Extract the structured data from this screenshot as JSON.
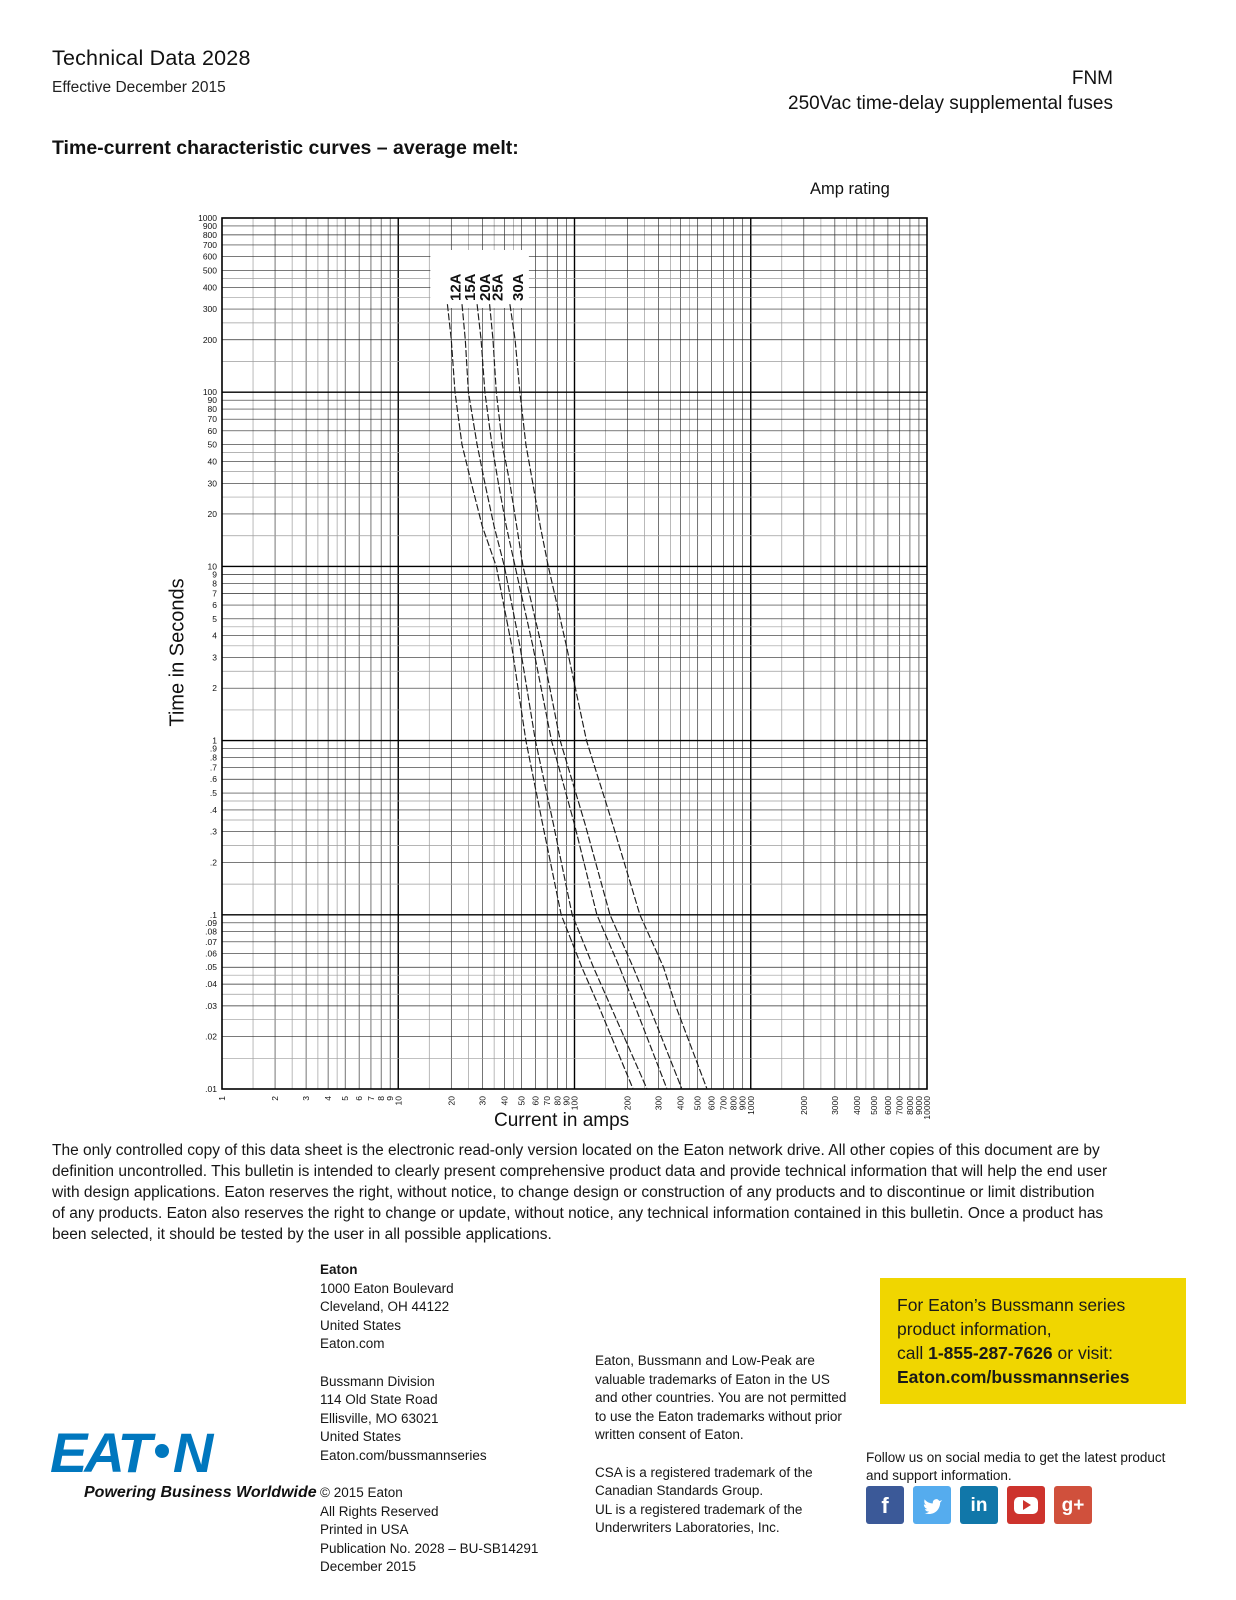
{
  "header": {
    "title": "Technical Data 2028",
    "effective_date": "Effective December 2015",
    "product_series": "FNM",
    "product_description": "250Vac time-delay supplemental fuses"
  },
  "section_title": "Time-current characteristic curves – average melt:",
  "chart_data": {
    "type": "line",
    "title": "Time-current characteristic curves – average melt",
    "legend_title": "Amp rating",
    "xlabel": "Current in amps",
    "ylabel": "Time in Seconds",
    "x_scale": "log",
    "y_scale": "log",
    "xlim": [
      1,
      10000
    ],
    "ylim": [
      0.01,
      1000
    ],
    "grid": true,
    "x_tick_labels": [
      "1",
      "2",
      "3",
      "4",
      "5",
      "6",
      "7",
      "8",
      "9",
      "10",
      "20",
      "30",
      "40",
      "50",
      "60",
      "70",
      "80",
      "90",
      "100",
      "200",
      "300",
      "400",
      "500",
      "600",
      "700",
      "800",
      "900",
      "1000",
      "2000",
      "3000",
      "4000",
      "5000",
      "6000",
      "7000",
      "8000",
      "9000",
      "10000"
    ],
    "y_tick_labels": [
      "1000",
      "900",
      "800",
      "700",
      "600",
      "500",
      "400",
      "300",
      "200",
      "100",
      "90",
      "80",
      "70",
      "60",
      "50",
      "40",
      "30",
      "20",
      "10",
      "9",
      "8",
      "7",
      "6",
      "5",
      "4",
      "3",
      "2",
      "1",
      ".9",
      ".8",
      ".7",
      ".6",
      ".5",
      ".4",
      ".3",
      ".2",
      ".1",
      ".09",
      ".08",
      ".07",
      ".06",
      ".05",
      ".04",
      ".03",
      ".02",
      ".01"
    ],
    "series": [
      {
        "name": "12A",
        "points": [
          [
            19,
            320
          ],
          [
            20,
            200
          ],
          [
            21,
            100
          ],
          [
            23,
            50
          ],
          [
            26,
            30
          ],
          [
            30,
            17
          ],
          [
            36,
            10
          ],
          [
            44,
            3.5
          ],
          [
            53,
            1
          ],
          [
            66,
            0.33
          ],
          [
            84,
            0.1
          ],
          [
            110,
            0.05
          ],
          [
            137,
            0.03
          ],
          [
            215,
            0.01
          ]
        ]
      },
      {
        "name": "15A",
        "points": [
          [
            23,
            320
          ],
          [
            24,
            200
          ],
          [
            25,
            100
          ],
          [
            28,
            50
          ],
          [
            31,
            30
          ],
          [
            35,
            17
          ],
          [
            40,
            10
          ],
          [
            49,
            3.5
          ],
          [
            60,
            1
          ],
          [
            76,
            0.33
          ],
          [
            97,
            0.1
          ],
          [
            128,
            0.05
          ],
          [
            160,
            0.03
          ],
          [
            258,
            0.01
          ]
        ]
      },
      {
        "name": "20A",
        "points": [
          [
            28,
            320
          ],
          [
            29.5,
            200
          ],
          [
            31,
            100
          ],
          [
            34,
            50
          ],
          [
            37,
            30
          ],
          [
            41,
            17
          ],
          [
            46,
            10
          ],
          [
            58,
            3.5
          ],
          [
            74,
            1
          ],
          [
            100,
            0.33
          ],
          [
            134,
            0.1
          ],
          [
            180,
            0.05
          ],
          [
            220,
            0.03
          ],
          [
            335,
            0.01
          ]
        ]
      },
      {
        "name": "25A",
        "points": [
          [
            33,
            320
          ],
          [
            34.5,
            200
          ],
          [
            36,
            100
          ],
          [
            39,
            50
          ],
          [
            43,
            30
          ],
          [
            47,
            17
          ],
          [
            51,
            10
          ],
          [
            65,
            3.5
          ],
          [
            83,
            1
          ],
          [
            115,
            0.33
          ],
          [
            159,
            0.1
          ],
          [
            215,
            0.05
          ],
          [
            265,
            0.03
          ],
          [
            407,
            0.01
          ]
        ]
      },
      {
        "name": "30A",
        "points": [
          [
            43,
            320
          ],
          [
            46,
            200
          ],
          [
            49,
            100
          ],
          [
            53,
            50
          ],
          [
            58,
            30
          ],
          [
            64,
            17
          ],
          [
            71,
            10
          ],
          [
            90,
            3.5
          ],
          [
            117,
            1
          ],
          [
            165,
            0.33
          ],
          [
            235,
            0.1
          ],
          [
            320,
            0.05
          ],
          [
            375,
            0.03
          ],
          [
            565,
            0.01
          ]
        ]
      }
    ]
  },
  "disclaimer": "The only controlled copy of this data sheet is the electronic read-only version located on the Eaton network drive. All other copies of this document are by definition uncontrolled. This bulletin is intended to clearly present comprehensive product data and provide technical information that will help the end user with design applications. Eaton reserves the right, without notice, to change design or construction of any products and to discontinue or limit distribution of any products. Eaton also reserves the right to change or update, without notice, any technical information  contained in this bulletin. Once a product has been selected, it should be tested by the user in all possible applications.",
  "footer": {
    "address_hq": [
      "Eaton",
      "1000 Eaton Boulevard",
      "Cleveland, OH 44122",
      "United States",
      "Eaton.com"
    ],
    "address_division": [
      "Bussmann Division",
      "114 Old State Road",
      "Ellisville, MO 63021",
      "United States",
      "Eaton.com/bussmannseries"
    ],
    "copyright": [
      "© 2015 Eaton",
      "All Rights Reserved",
      "Printed in USA",
      "Publication No. 2028 – BU-SB14291",
      "December 2015"
    ],
    "trademarks_1": "Eaton, Bussmann and Low-Peak are valuable trademarks of Eaton in the US and other countries. You are not permitted to use the Eaton trademarks without prior written consent of Eaton.",
    "trademarks_2": "CSA is a registered trademark of the Canadian Standards Group.",
    "trademarks_3": "UL is a registered trademark of the Underwriters Laboratories, Inc.",
    "promo": {
      "bg_color": "#f0d600",
      "line1": "For Eaton’s Bussmann series",
      "line2": "product information,",
      "call_prefix": "call ",
      "phone": "1-855-287-7626",
      "call_suffix": " or visit:",
      "url": "Eaton.com/bussmannseries"
    },
    "social_prompt": "Follow us on social media to get the latest product and support information.",
    "social": [
      {
        "icon": "facebook-icon",
        "glyph": "f",
        "color": "#3b5998"
      },
      {
        "icon": "twitter-icon",
        "glyph": "bird",
        "color": "#55acee"
      },
      {
        "icon": "linkedin-icon",
        "glyph": "in",
        "color": "#1177a9"
      },
      {
        "icon": "youtube-icon",
        "glyph": "play-button",
        "color": "#cd332d"
      },
      {
        "icon": "google-plus-icon",
        "glyph": "g+",
        "color": "#d0503c"
      }
    ],
    "logo": {
      "brand_color": "#0077be",
      "left": "EAT",
      "right": "N",
      "tagline": "Powering Business Worldwide"
    }
  }
}
